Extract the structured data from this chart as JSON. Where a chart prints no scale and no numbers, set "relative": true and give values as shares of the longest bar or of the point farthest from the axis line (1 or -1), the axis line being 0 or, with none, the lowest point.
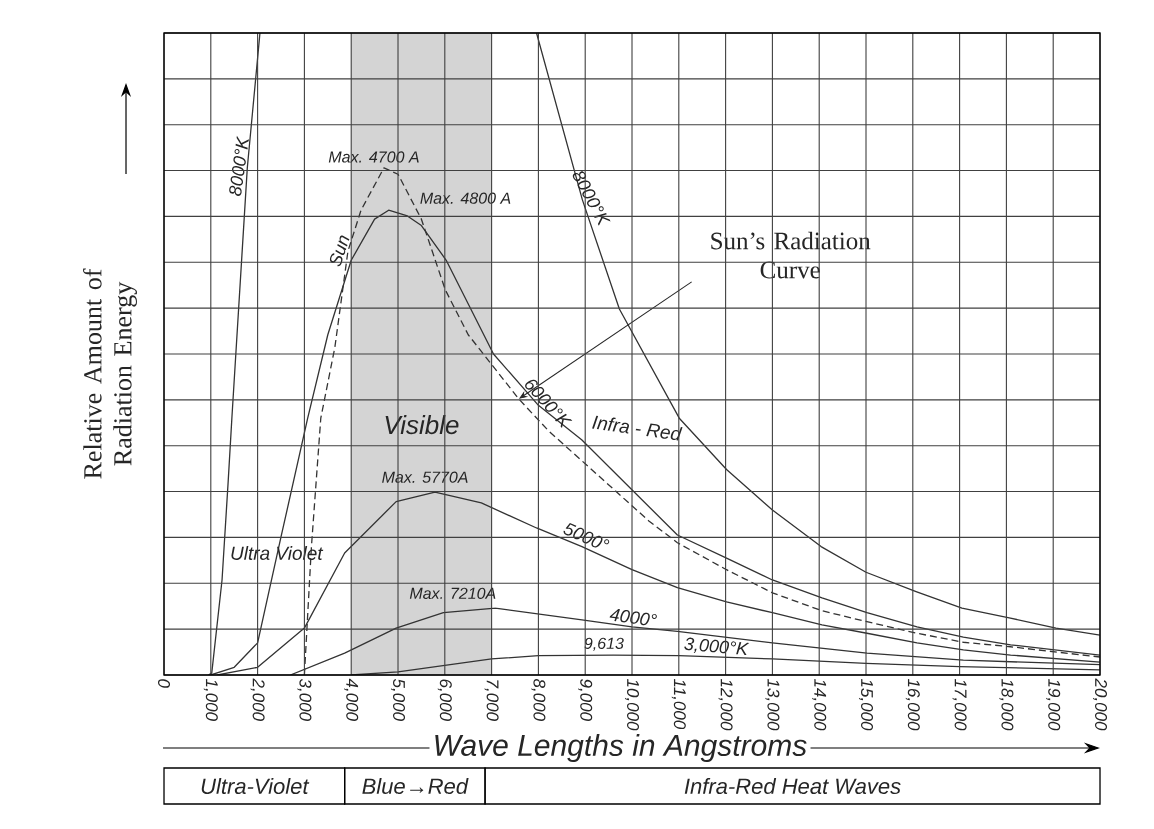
{
  "chart_data": {
    "type": "line",
    "relative": true,
    "grid": true,
    "xlabel": "Wave Lengths in Angstroms",
    "ylabel": "Relative Amount of Radiation Energy",
    "xlim": [
      0,
      20000
    ],
    "xticks": [
      0,
      {
        "value": 1000,
        "label": "1,000"
      },
      {
        "value": 2000,
        "label": "2,000"
      },
      {
        "value": 3000,
        "label": "3,000"
      },
      {
        "value": 4000,
        "label": "4,000"
      },
      {
        "value": 5000,
        "label": "5,000"
      },
      {
        "value": 6000,
        "label": "6,000"
      },
      {
        "value": 7000,
        "label": "7,000"
      },
      {
        "value": 8000,
        "label": "8,000"
      },
      {
        "value": 9000,
        "label": "9,000"
      },
      {
        "value": 10000,
        "label": "10,000"
      },
      {
        "value": 11000,
        "label": "11,000"
      },
      {
        "value": 12000,
        "label": "12,000"
      },
      {
        "value": 13000,
        "label": "13,000"
      },
      {
        "value": 14000,
        "label": "14,000"
      },
      {
        "value": 15000,
        "label": "15,000"
      },
      {
        "value": 16000,
        "label": "16,000"
      },
      {
        "value": 17000,
        "label": "17,000"
      },
      {
        "value": 18000,
        "label": "18,000"
      },
      {
        "value": 19000,
        "label": "19,000"
      },
      {
        "value": 20000,
        "label": "20,000"
      }
    ],
    "series": [
      {
        "name": "8000°K",
        "color": "#333333",
        "x": [
          950,
          1020,
          1240,
          1370,
          1450,
          1780,
          2050
        ],
        "values": [
          0,
          0.003,
          0.148,
          0.3,
          0.4,
          0.79,
          1.0
        ]
      },
      {
        "name": "8000°K",
        "color": "#333333",
        "x": [
          7960,
          8940,
          9730,
          11010,
          12020,
          13000,
          14040,
          15000,
          16070,
          17050,
          18060,
          19060,
          20000
        ],
        "values": [
          1.0,
          0.74,
          0.57,
          0.4,
          0.32,
          0.257,
          0.2,
          0.16,
          0.13,
          0.104,
          0.089,
          0.073,
          0.062
        ]
      },
      {
        "name": "6000°K",
        "color": "#333333",
        "x": [
          1000,
          1500,
          2000,
          2500,
          3070,
          3500,
          4000,
          4500,
          4800,
          5200,
          5500,
          6030,
          7040,
          8000,
          8930,
          10970,
          12020,
          13000,
          14060,
          15020,
          16090,
          17080,
          18090,
          20000
        ],
        "values": [
          0,
          0.012,
          0.05,
          0.215,
          0.4,
          0.53,
          0.646,
          0.71,
          0.724,
          0.715,
          0.7,
          0.646,
          0.5,
          0.42,
          0.366,
          0.218,
          0.182,
          0.148,
          0.12,
          0.097,
          0.075,
          0.059,
          0.047,
          0.031
        ]
      },
      {
        "name": "5000°",
        "color": "#333333",
        "x": [
          1140,
          2000,
          3000,
          3860,
          4960,
          5790,
          6780,
          7960,
          8930,
          10000,
          10970,
          12020,
          13000,
          14060,
          15020,
          16090,
          17080,
          18090,
          20000
        ],
        "values": [
          0,
          0.012,
          0.073,
          0.19,
          0.27,
          0.285,
          0.268,
          0.229,
          0.2,
          0.164,
          0.136,
          0.114,
          0.097,
          0.078,
          0.065,
          0.05,
          0.039,
          0.031,
          0.02
        ]
      },
      {
        "name": "4000°",
        "color": "#333333",
        "x": [
          2700,
          3860,
          4960,
          5970,
          7080,
          8930,
          10000,
          10970,
          13000,
          15020,
          17080,
          20000
        ],
        "values": [
          0,
          0.034,
          0.073,
          0.097,
          0.104,
          0.086,
          0.075,
          0.068,
          0.05,
          0.034,
          0.023,
          0.016
        ]
      },
      {
        "name": "3,000°K",
        "color": "#333333",
        "x": [
          4000,
          5000,
          6000,
          7000,
          8000,
          9600,
          11000,
          13000,
          15000,
          17000,
          20000
        ],
        "values": [
          0,
          0.005,
          0.015,
          0.025,
          0.03,
          0.031,
          0.03,
          0.025,
          0.018,
          0.013,
          0.008
        ]
      },
      {
        "name": "Sun",
        "color": "#333333",
        "line_style": "dashed",
        "x": [
          3000,
          3150,
          3350,
          3650,
          3930,
          4210,
          4700,
          5000,
          5500,
          6010,
          6500,
          7580,
          8220,
          10360,
          10970,
          12020,
          13000,
          14060,
          15020,
          16090,
          17080,
          18090,
          20000
        ],
        "values": [
          0,
          0.2,
          0.4,
          0.51,
          0.66,
          0.724,
          0.79,
          0.78,
          0.71,
          0.6,
          0.53,
          0.43,
          0.38,
          0.24,
          0.206,
          0.164,
          0.128,
          0.1,
          0.083,
          0.065,
          0.051,
          0.044,
          0.028
        ]
      }
    ],
    "bands": [
      {
        "axis": "x",
        "from": 4000,
        "to": 7000,
        "label": "Visible",
        "color": "#d4d4d4"
      }
    ],
    "annotations": [
      {
        "text": "Max. 4700 A",
        "x": 4700,
        "y": 0.79
      },
      {
        "text": "Max. 4800 A",
        "x": 4800,
        "y": 0.724
      },
      {
        "text": "Max. 5770A",
        "x": 5770,
        "y": 0.285
      },
      {
        "text": "Max. 7210A",
        "x": 7210,
        "y": 0.104
      },
      {
        "text": "9,613",
        "x": 9613,
        "y": 0.031
      },
      "Sun’s Radiation Curve",
      "Ultra Violet",
      "Infra - Red",
      "Ultra-Violet",
      "Blue→Red",
      "Infra-Red Heat Waves"
    ]
  }
}
